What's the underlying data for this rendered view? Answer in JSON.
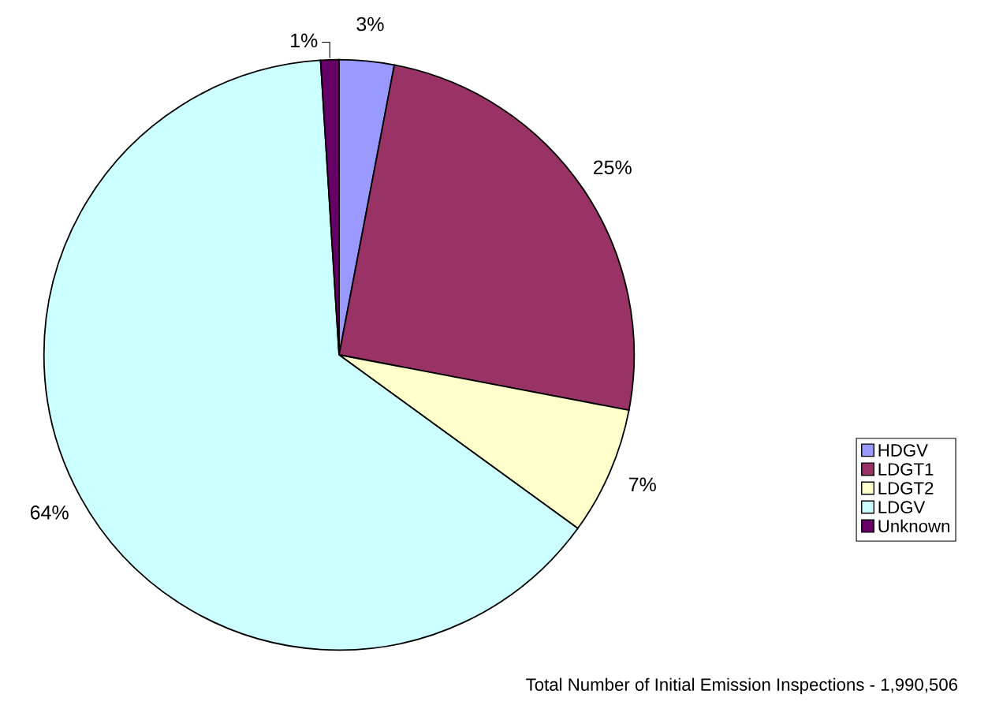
{
  "chart_data": {
    "type": "pie",
    "categories": [
      "HDGV",
      "LDGT1",
      "LDGT2",
      "LDGV",
      "Unknown"
    ],
    "values": [
      3,
      25,
      7,
      64,
      1
    ],
    "value_labels": [
      "3%",
      "25%",
      "7%",
      "64%",
      "1%"
    ],
    "colors": [
      "#9999ff",
      "#993366",
      "#ffffcc",
      "#ccffff",
      "#660066"
    ],
    "legend": "right",
    "annotations": [
      "Total Number of Initial Emission Inspections - 1,990,506"
    ]
  }
}
